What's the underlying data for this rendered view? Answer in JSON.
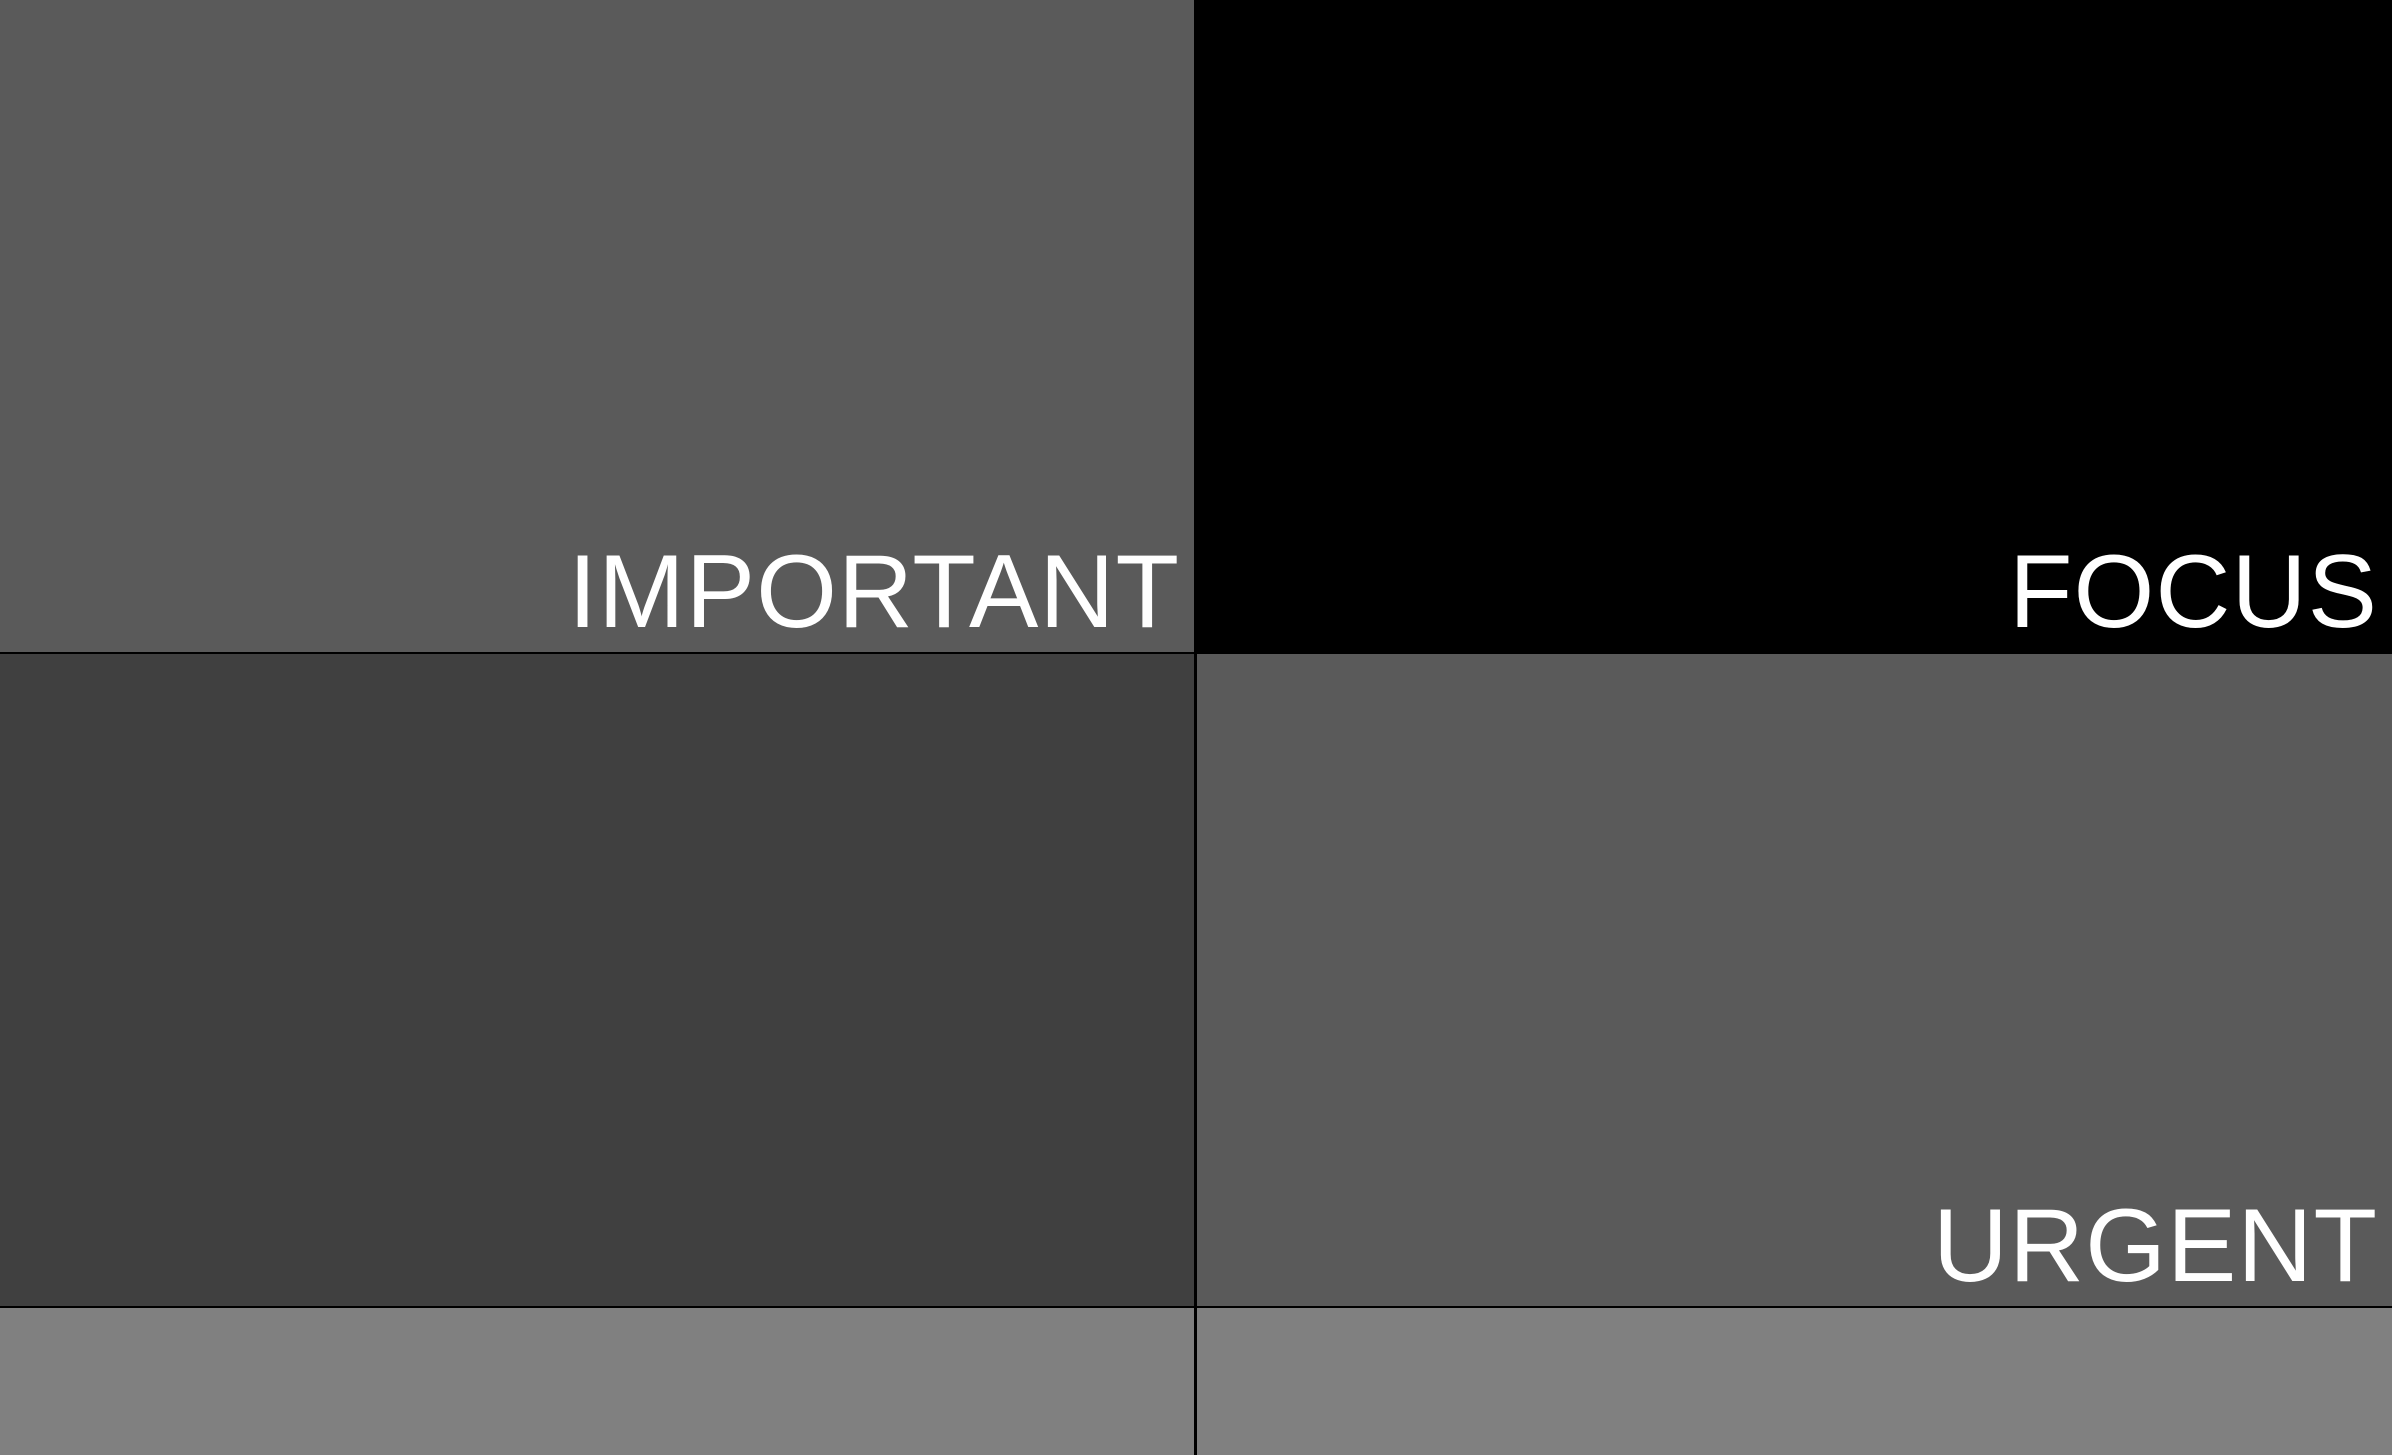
{
  "quadrants": {
    "top_left": {
      "label": "IMPORTANT",
      "color": "#5a5a5a"
    },
    "top_right": {
      "label": "FOCUS",
      "color": "#000000"
    },
    "middle_left": {
      "label": "",
      "color": "#404040"
    },
    "middle_right": {
      "label": "URGENT",
      "color": "#5a5a5a"
    },
    "bottom_left": {
      "label": "",
      "color": "#808080"
    },
    "bottom_right": {
      "label": "",
      "color": "#808080"
    }
  },
  "label_color": "#ffffff"
}
